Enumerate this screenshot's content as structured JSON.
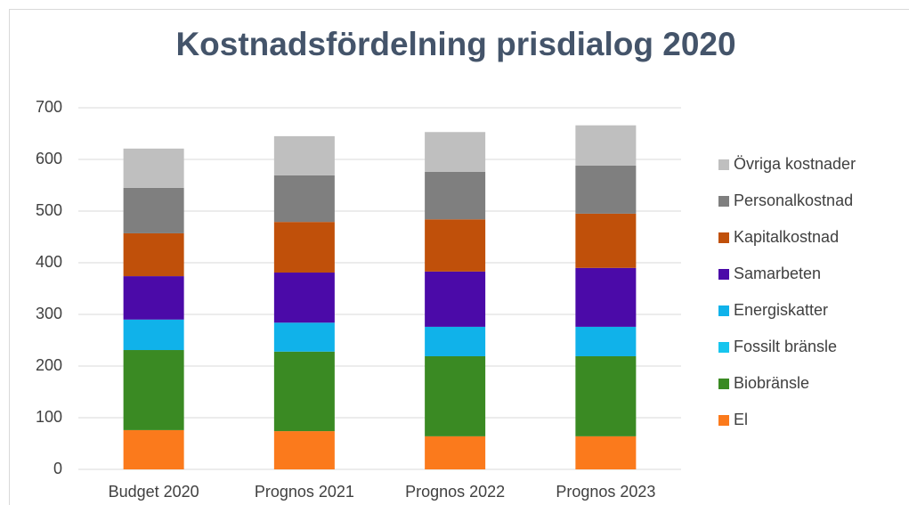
{
  "chart_data": {
    "type": "stacked_bar",
    "title": "Kostnadsfördelning prisdialog 2020",
    "categories": [
      "Budget 2020",
      "Prognos 2021",
      "Prognos 2022",
      "Prognos 2023"
    ],
    "series": [
      {
        "name": "El",
        "color": "#fb7a1c",
        "values": [
          76,
          74,
          64,
          64
        ]
      },
      {
        "name": "Biobränsle",
        "color": "#3a8a23",
        "values": [
          155,
          154,
          155,
          155
        ]
      },
      {
        "name": "Fossilt bränsle",
        "color": "#17c5ee",
        "values": [
          0,
          0,
          0,
          0
        ]
      },
      {
        "name": "Energiskatter",
        "color": "#10b2ea",
        "values": [
          59,
          56,
          57,
          57
        ]
      },
      {
        "name": "Samarbeten",
        "color": "#4b0aa8",
        "values": [
          84,
          97,
          107,
          114
        ]
      },
      {
        "name": "Kapitalkostnad",
        "color": "#c0500a",
        "values": [
          83,
          98,
          101,
          105
        ]
      },
      {
        "name": "Personalkostnad",
        "color": "#7f7f7f",
        "values": [
          88,
          90,
          92,
          93
        ]
      },
      {
        "name": "Övriga kostnader",
        "color": "#bfbfbf",
        "values": [
          76,
          76,
          77,
          78
        ]
      }
    ],
    "ylim": [
      0,
      700
    ],
    "yticks": [
      0,
      100,
      200,
      300,
      400,
      500,
      600,
      700
    ],
    "grid": true,
    "legend": "right"
  }
}
